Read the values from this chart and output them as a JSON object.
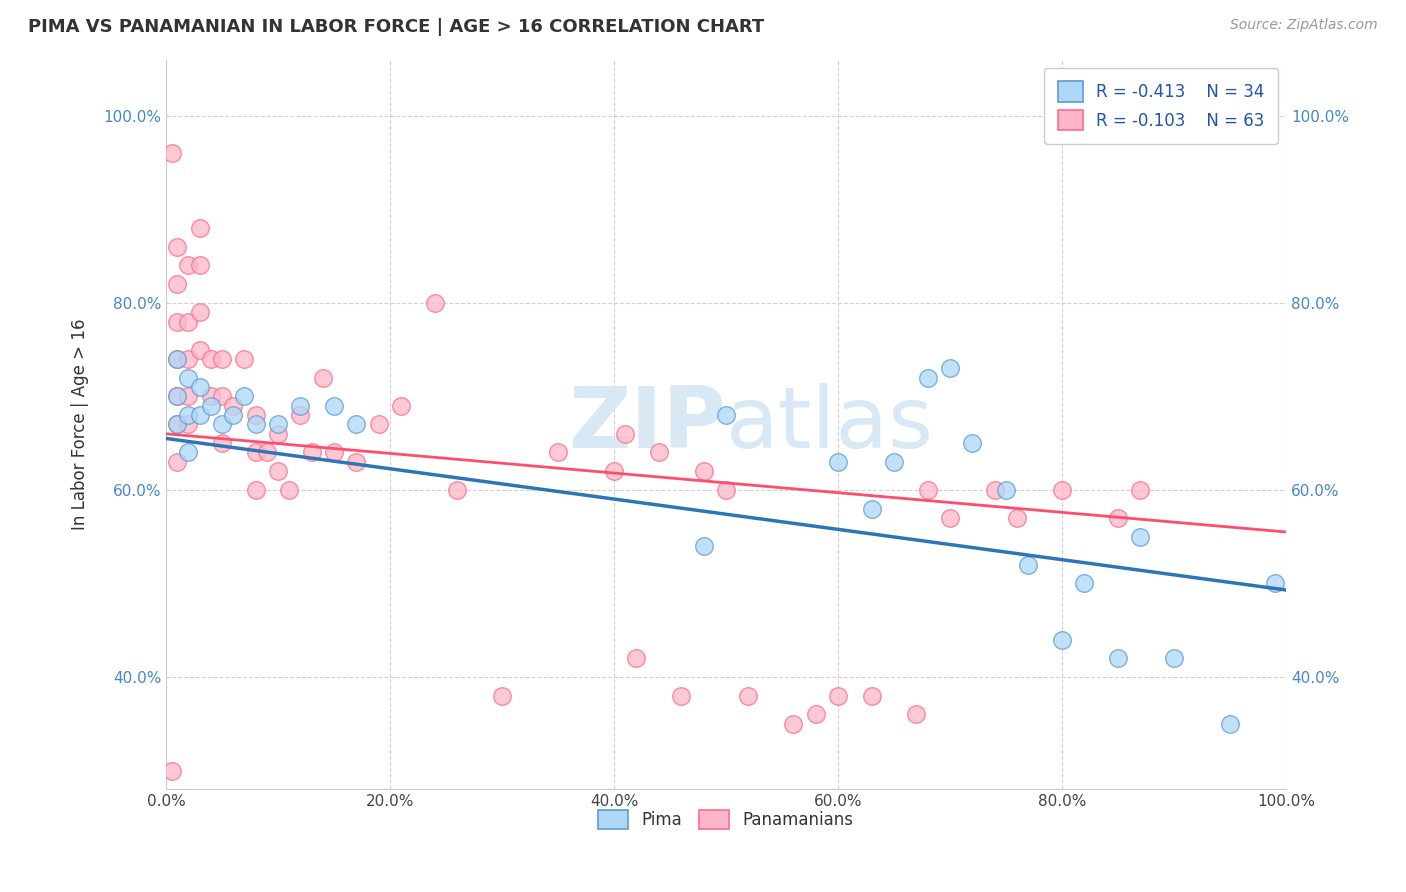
{
  "title": "PIMA VS PANAMANIAN IN LABOR FORCE | AGE > 16 CORRELATION CHART",
  "source_text": "Source: ZipAtlas.com",
  "ylabel": "In Labor Force | Age > 16",
  "xlim": [
    0.0,
    1.0
  ],
  "ylim": [
    0.28,
    1.06
  ],
  "x_tick_labels": [
    "0.0%",
    "20.0%",
    "40.0%",
    "60.0%",
    "80.0%",
    "100.0%"
  ],
  "x_tick_vals": [
    0.0,
    0.2,
    0.4,
    0.6,
    0.8,
    1.0
  ],
  "y_tick_labels": [
    "40.0%",
    "60.0%",
    "80.0%",
    "100.0%"
  ],
  "y_tick_vals": [
    0.4,
    0.6,
    0.8,
    1.0
  ],
  "legend_r_blue": "R = -0.413",
  "legend_n_blue": "N = 34",
  "legend_r_pink": "R = -0.103",
  "legend_n_pink": "N = 63",
  "blue_color": "#ADD8F7",
  "pink_color": "#FFB6C8",
  "blue_edge_color": "#5B9BD5",
  "pink_edge_color": "#FF6B8A",
  "blue_line_color": "#2E75B6",
  "pink_line_color": "#FF4D6E",
  "watermark_color": "#D8E8F5",
  "background_color": "#FFFFFF",
  "grid_color": "#CCCCCC",
  "blue_line_y0": 0.655,
  "blue_line_y1": 0.493,
  "pink_line_y0": 0.66,
  "pink_line_y1": 0.555,
  "blue_scatter_x": [
    0.01,
    0.01,
    0.01,
    0.02,
    0.02,
    0.02,
    0.03,
    0.03,
    0.04,
    0.05,
    0.06,
    0.07,
    0.08,
    0.1,
    0.12,
    0.15,
    0.17,
    0.48,
    0.5,
    0.6,
    0.63,
    0.65,
    0.68,
    0.7,
    0.72,
    0.75,
    0.77,
    0.8,
    0.82,
    0.85,
    0.87,
    0.9,
    0.95,
    0.99
  ],
  "blue_scatter_y": [
    0.74,
    0.7,
    0.67,
    0.72,
    0.68,
    0.64,
    0.71,
    0.68,
    0.69,
    0.67,
    0.68,
    0.7,
    0.67,
    0.67,
    0.69,
    0.69,
    0.67,
    0.54,
    0.68,
    0.63,
    0.58,
    0.63,
    0.72,
    0.73,
    0.65,
    0.6,
    0.52,
    0.44,
    0.5,
    0.42,
    0.55,
    0.42,
    0.35,
    0.5
  ],
  "pink_scatter_x": [
    0.005,
    0.005,
    0.01,
    0.01,
    0.01,
    0.01,
    0.01,
    0.01,
    0.01,
    0.02,
    0.02,
    0.02,
    0.02,
    0.02,
    0.03,
    0.03,
    0.03,
    0.03,
    0.04,
    0.04,
    0.05,
    0.05,
    0.05,
    0.06,
    0.07,
    0.08,
    0.08,
    0.08,
    0.09,
    0.1,
    0.1,
    0.11,
    0.12,
    0.13,
    0.14,
    0.15,
    0.17,
    0.19,
    0.21,
    0.24,
    0.26,
    0.3,
    0.35,
    0.4,
    0.41,
    0.42,
    0.44,
    0.46,
    0.48,
    0.5,
    0.52,
    0.56,
    0.58,
    0.6,
    0.63,
    0.67,
    0.68,
    0.7,
    0.74,
    0.76,
    0.8,
    0.85,
    0.87
  ],
  "pink_scatter_y": [
    0.96,
    0.3,
    0.86,
    0.82,
    0.78,
    0.74,
    0.7,
    0.67,
    0.63,
    0.84,
    0.78,
    0.74,
    0.7,
    0.67,
    0.88,
    0.84,
    0.79,
    0.75,
    0.74,
    0.7,
    0.74,
    0.7,
    0.65,
    0.69,
    0.74,
    0.68,
    0.64,
    0.6,
    0.64,
    0.66,
    0.62,
    0.6,
    0.68,
    0.64,
    0.72,
    0.64,
    0.63,
    0.67,
    0.69,
    0.8,
    0.6,
    0.38,
    0.64,
    0.62,
    0.66,
    0.42,
    0.64,
    0.38,
    0.62,
    0.6,
    0.38,
    0.35,
    0.36,
    0.38,
    0.38,
    0.36,
    0.6,
    0.57,
    0.6,
    0.57,
    0.6,
    0.57,
    0.6
  ]
}
